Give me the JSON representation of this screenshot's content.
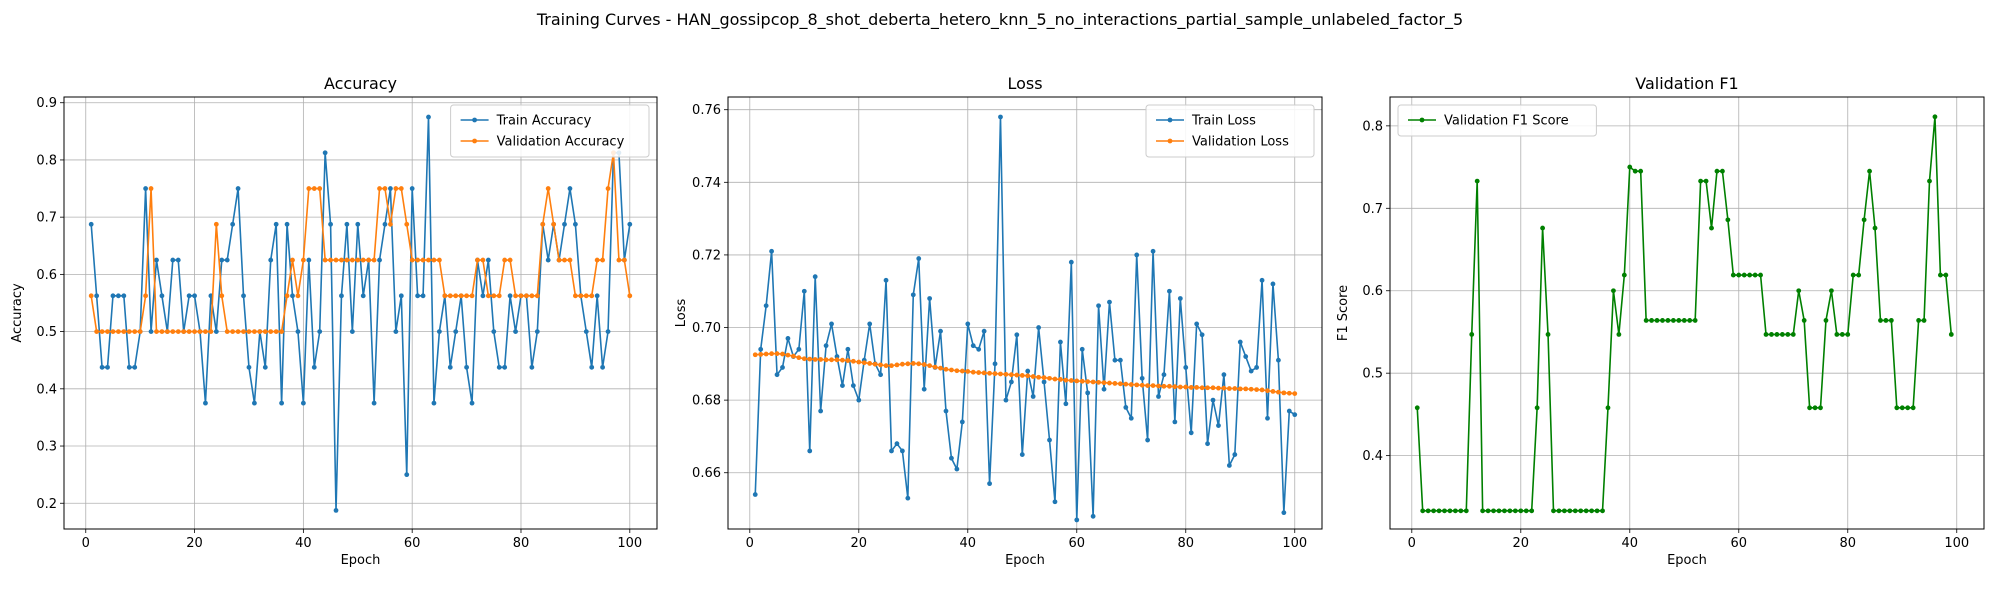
{
  "figure": {
    "suptitle": "Training Curves - HAN_gossipcop_8_shot_deberta_hetero_knn_5_no_interactions_partial_sample_unlabeled_factor_5"
  },
  "chart_data": [
    {
      "type": "line",
      "title": "Accuracy",
      "xlabel": "Epoch",
      "ylabel": "Accuracy",
      "xlim": [
        -4,
        105
      ],
      "ylim": [
        0.155,
        0.91
      ],
      "xticks": [
        0,
        20,
        40,
        60,
        80,
        100
      ],
      "yticks": [
        0.2,
        0.3,
        0.4,
        0.5,
        0.6,
        0.7,
        0.8,
        0.9
      ],
      "grid": true,
      "legend": "upper right",
      "x_start": 1,
      "series": [
        {
          "name": "Train Accuracy",
          "color": "#1f77b4",
          "values": [
            0.6875,
            0.5625,
            0.4375,
            0.4375,
            0.5625,
            0.5625,
            0.5625,
            0.4375,
            0.4375,
            0.5,
            0.75,
            0.5,
            0.625,
            0.5625,
            0.5,
            0.625,
            0.625,
            0.5,
            0.5625,
            0.5625,
            0.5,
            0.375,
            0.5625,
            0.5,
            0.625,
            0.625,
            0.6875,
            0.75,
            0.5625,
            0.4375,
            0.375,
            0.5,
            0.4375,
            0.625,
            0.6875,
            0.375,
            0.6875,
            0.5625,
            0.5,
            0.375,
            0.625,
            0.4375,
            0.5,
            0.8125,
            0.6875,
            0.1875,
            0.5625,
            0.6875,
            0.5,
            0.6875,
            0.5625,
            0.625,
            0.375,
            0.625,
            0.6875,
            0.75,
            0.5,
            0.5625,
            0.25,
            0.75,
            0.5625,
            0.5625,
            0.875,
            0.375,
            0.5,
            0.5625,
            0.4375,
            0.5,
            0.5625,
            0.4375,
            0.375,
            0.625,
            0.5625,
            0.625,
            0.5,
            0.4375,
            0.4375,
            0.5625,
            0.5,
            0.5625,
            0.5625,
            0.4375,
            0.5,
            0.6875,
            0.625,
            0.6875,
            0.625,
            0.6875,
            0.75,
            0.6875,
            0.5625,
            0.5,
            0.4375,
            0.5625,
            0.4375,
            0.5,
            0.8125,
            0.8125,
            0.625,
            0.6875
          ]
        },
        {
          "name": "Validation Accuracy",
          "color": "#ff7f0e",
          "values": [
            0.5625,
            0.5,
            0.5,
            0.5,
            0.5,
            0.5,
            0.5,
            0.5,
            0.5,
            0.5,
            0.5625,
            0.75,
            0.5,
            0.5,
            0.5,
            0.5,
            0.5,
            0.5,
            0.5,
            0.5,
            0.5,
            0.5,
            0.5,
            0.6875,
            0.5625,
            0.5,
            0.5,
            0.5,
            0.5,
            0.5,
            0.5,
            0.5,
            0.5,
            0.5,
            0.5,
            0.5,
            0.5625,
            0.625,
            0.5625,
            0.625,
            0.75,
            0.75,
            0.75,
            0.625,
            0.625,
            0.625,
            0.625,
            0.625,
            0.625,
            0.625,
            0.625,
            0.625,
            0.625,
            0.75,
            0.75,
            0.6875,
            0.75,
            0.75,
            0.6875,
            0.625,
            0.625,
            0.625,
            0.625,
            0.625,
            0.625,
            0.5625,
            0.5625,
            0.5625,
            0.5625,
            0.5625,
            0.5625,
            0.625,
            0.625,
            0.5625,
            0.5625,
            0.5625,
            0.625,
            0.625,
            0.5625,
            0.5625,
            0.5625,
            0.5625,
            0.5625,
            0.6875,
            0.75,
            0.6875,
            0.625,
            0.625,
            0.625,
            0.5625,
            0.5625,
            0.5625,
            0.5625,
            0.625,
            0.625,
            0.75,
            0.8125,
            0.625,
            0.625,
            0.5625
          ]
        }
      ]
    },
    {
      "type": "line",
      "title": "Loss",
      "xlabel": "Epoch",
      "ylabel": "Loss",
      "xlim": [
        -4,
        105
      ],
      "ylim": [
        0.6445,
        0.7635
      ],
      "xticks": [
        0,
        20,
        40,
        60,
        80,
        100
      ],
      "yticks": [
        0.66,
        0.68,
        0.7,
        0.72,
        0.74,
        0.76
      ],
      "grid": true,
      "legend": "upper right",
      "x_start": 1,
      "series": [
        {
          "name": "Train Loss",
          "color": "#1f77b4",
          "values": [
            0.654,
            0.694,
            0.706,
            0.721,
            0.687,
            0.689,
            0.697,
            0.692,
            0.694,
            0.71,
            0.666,
            0.714,
            0.677,
            0.695,
            0.701,
            0.692,
            0.684,
            0.694,
            0.684,
            0.68,
            0.691,
            0.701,
            0.69,
            0.687,
            0.713,
            0.666,
            0.668,
            0.666,
            0.653,
            0.709,
            0.719,
            0.683,
            0.708,
            0.689,
            0.699,
            0.677,
            0.664,
            0.661,
            0.674,
            0.701,
            0.695,
            0.694,
            0.699,
            0.657,
            0.69,
            0.758,
            0.68,
            0.685,
            0.698,
            0.665,
            0.688,
            0.681,
            0.7,
            0.685,
            0.669,
            0.652,
            0.696,
            0.679,
            0.718,
            0.647,
            0.694,
            0.682,
            0.648,
            0.706,
            0.683,
            0.707,
            0.691,
            0.691,
            0.678,
            0.675,
            0.72,
            0.686,
            0.669,
            0.721,
            0.681,
            0.687,
            0.71,
            0.674,
            0.708,
            0.689,
            0.671,
            0.701,
            0.698,
            0.668,
            0.68,
            0.673,
            0.687,
            0.662,
            0.665,
            0.696,
            0.692,
            0.688,
            0.689,
            0.713,
            0.675,
            0.712,
            0.691,
            0.649,
            0.677,
            0.676
          ]
        },
        {
          "name": "Validation Loss",
          "color": "#ff7f0e",
          "values": [
            0.6925,
            0.6926,
            0.6927,
            0.6928,
            0.6928,
            0.6927,
            0.6924,
            0.6921,
            0.6917,
            0.6914,
            0.6913,
            0.6912,
            0.6912,
            0.6911,
            0.6911,
            0.6911,
            0.691,
            0.6909,
            0.6907,
            0.6905,
            0.6903,
            0.6901,
            0.6899,
            0.6897,
            0.6895,
            0.6895,
            0.6897,
            0.6899,
            0.69,
            0.6901,
            0.69,
            0.6898,
            0.6895,
            0.6891,
            0.6888,
            0.6885,
            0.6883,
            0.6881,
            0.688,
            0.6879,
            0.6877,
            0.6876,
            0.6875,
            0.6874,
            0.6873,
            0.6872,
            0.6871,
            0.687,
            0.6869,
            0.6868,
            0.6867,
            0.6865,
            0.6863,
            0.6862,
            0.686,
            0.6858,
            0.6857,
            0.6855,
            0.6854,
            0.6853,
            0.6852,
            0.6851,
            0.685,
            0.6849,
            0.6848,
            0.6847,
            0.6846,
            0.6845,
            0.6844,
            0.6843,
            0.6842,
            0.6841,
            0.684,
            0.684,
            0.6839,
            0.6838,
            0.6838,
            0.6837,
            0.6836,
            0.6836,
            0.6835,
            0.6835,
            0.6834,
            0.6834,
            0.6834,
            0.6833,
            0.6833,
            0.6832,
            0.6832,
            0.6831,
            0.6831,
            0.683,
            0.6829,
            0.6828,
            0.6826,
            0.6824,
            0.6822,
            0.682,
            0.6819,
            0.6818
          ]
        }
      ]
    },
    {
      "type": "line",
      "title": "Validation F1",
      "xlabel": "Epoch",
      "ylabel": "F1 Score",
      "xlim": [
        -4,
        105
      ],
      "ylim": [
        0.311,
        0.835
      ],
      "xticks": [
        0,
        20,
        40,
        60,
        80,
        100
      ],
      "yticks": [
        0.4,
        0.5,
        0.6,
        0.7,
        0.8
      ],
      "grid": true,
      "legend": "upper left",
      "x_start": 1,
      "series": [
        {
          "name": "Validation F1 Score",
          "color": "#008000",
          "values": [
            0.458,
            0.333,
            0.333,
            0.333,
            0.333,
            0.333,
            0.333,
            0.333,
            0.333,
            0.333,
            0.547,
            0.733,
            0.333,
            0.333,
            0.333,
            0.333,
            0.333,
            0.333,
            0.333,
            0.333,
            0.333,
            0.333,
            0.458,
            0.676,
            0.547,
            0.333,
            0.333,
            0.333,
            0.333,
            0.333,
            0.333,
            0.333,
            0.333,
            0.333,
            0.333,
            0.458,
            0.6,
            0.547,
            0.619,
            0.75,
            0.745,
            0.745,
            0.564,
            0.564,
            0.564,
            0.564,
            0.564,
            0.564,
            0.564,
            0.564,
            0.564,
            0.564,
            0.733,
            0.733,
            0.676,
            0.745,
            0.745,
            0.686,
            0.619,
            0.619,
            0.619,
            0.619,
            0.619,
            0.619,
            0.547,
            0.547,
            0.547,
            0.547,
            0.547,
            0.547,
            0.6,
            0.564,
            0.458,
            0.458,
            0.458,
            0.564,
            0.6,
            0.547,
            0.547,
            0.547,
            0.619,
            0.619,
            0.686,
            0.745,
            0.676,
            0.564,
            0.564,
            0.564,
            0.458,
            0.458,
            0.458,
            0.458,
            0.564,
            0.564,
            0.733,
            0.811,
            0.619,
            0.619,
            0.547
          ]
        }
      ]
    }
  ]
}
